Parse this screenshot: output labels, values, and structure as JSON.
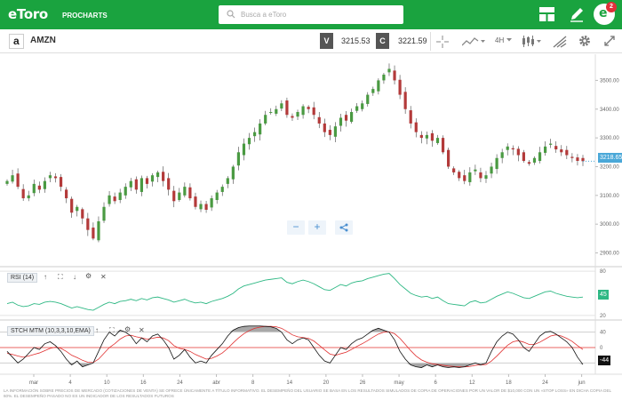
{
  "header": {
    "logo": "eToro",
    "logo_sub": "PROCHARTS",
    "search_placeholder": "Busca a eToro",
    "notification_count": "2",
    "avatar_letter": "e"
  },
  "toolbar": {
    "symbol": "AMZN",
    "sell_label": "V",
    "sell_price": "3215.53",
    "buy_label": "C",
    "buy_price": "3221.59",
    "timeframe": "4H"
  },
  "chart_data": [
    {
      "type": "candlestick",
      "symbol": "AMZN",
      "x_ticks": [
        "mar",
        "4",
        "10",
        "16",
        "24",
        "abr",
        "8",
        "14",
        "20",
        "26",
        "may",
        "6",
        "12",
        "18",
        "24",
        "jun"
      ],
      "y_ticks": [
        2900,
        3000,
        3100,
        3200,
        3300,
        3400,
        3500
      ],
      "ylim": [
        2880,
        3560
      ],
      "last_price": "3218.65",
      "close_series": [
        3150,
        3170,
        3130,
        3090,
        3100,
        3140,
        3120,
        3150,
        3170,
        3160,
        3130,
        3090,
        3040,
        3060,
        3020,
        2980,
        2950,
        3010,
        3060,
        3100,
        3080,
        3110,
        3130,
        3150,
        3120,
        3160,
        3140,
        3170,
        3180,
        3150,
        3120,
        3080,
        3110,
        3130,
        3090,
        3060,
        3070,
        3050,
        3090,
        3110,
        3130,
        3160,
        3200,
        3250,
        3280,
        3300,
        3320,
        3350,
        3380,
        3390,
        3400,
        3420,
        3380,
        3370,
        3390,
        3410,
        3400,
        3380,
        3350,
        3320,
        3310,
        3340,
        3370,
        3360,
        3390,
        3410,
        3420,
        3450,
        3470,
        3500,
        3520,
        3540,
        3500,
        3450,
        3400,
        3350,
        3320,
        3300,
        3310,
        3290,
        3300,
        3250,
        3200,
        3180,
        3160,
        3150,
        3180,
        3190,
        3160,
        3170,
        3200,
        3230,
        3250,
        3270,
        3260,
        3240,
        3220,
        3210,
        3230,
        3250,
        3270,
        3280,
        3260,
        3250,
        3240,
        3230,
        3220,
        3219
      ]
    },
    {
      "type": "line",
      "name": "RSI (14)",
      "y_ticks": [
        20,
        80
      ],
      "ylim": [
        15,
        85
      ],
      "last_value": "45",
      "values": [
        36,
        38,
        34,
        32,
        33,
        36,
        35,
        38,
        39,
        38,
        36,
        33,
        30,
        32,
        30,
        28,
        27,
        31,
        35,
        38,
        36,
        39,
        40,
        42,
        40,
        43,
        41,
        44,
        45,
        43,
        41,
        38,
        40,
        42,
        39,
        37,
        38,
        36,
        39,
        41,
        43,
        46,
        50,
        56,
        60,
        62,
        64,
        66,
        68,
        69,
        70,
        71,
        65,
        63,
        66,
        68,
        66,
        63,
        59,
        55,
        54,
        58,
        62,
        60,
        64,
        66,
        67,
        70,
        72,
        74,
        76,
        77,
        70,
        62,
        56,
        50,
        47,
        45,
        46,
        43,
        45,
        40,
        36,
        35,
        34,
        33,
        38,
        40,
        37,
        38,
        42,
        46,
        49,
        52,
        50,
        47,
        44,
        43,
        46,
        49,
        52,
        53,
        50,
        48,
        46,
        45,
        44,
        45
      ]
    },
    {
      "type": "line",
      "name": "STCH MTM (10,3,3,10,EMA)",
      "y_ticks": [
        40,
        0
      ],
      "ylim": [
        -60,
        60
      ],
      "last_value": "-44",
      "series": [
        {
          "name": "K",
          "values": [
            -10,
            -25,
            -40,
            -30,
            -15,
            0,
            -5,
            10,
            15,
            5,
            -10,
            -30,
            -45,
            -35,
            -50,
            -45,
            -40,
            -10,
            20,
            40,
            30,
            45,
            40,
            30,
            10,
            25,
            15,
            30,
            35,
            20,
            0,
            -30,
            -20,
            -5,
            -25,
            -40,
            -35,
            -40,
            -20,
            -5,
            10,
            30,
            45,
            52,
            55,
            56,
            56,
            56,
            55,
            54,
            50,
            40,
            20,
            10,
            20,
            25,
            20,
            0,
            -20,
            -35,
            -40,
            -20,
            0,
            -5,
            10,
            20,
            25,
            35,
            45,
            50,
            45,
            40,
            20,
            -10,
            -30,
            -45,
            -50,
            -52,
            -45,
            -50,
            -45,
            -50,
            -52,
            -50,
            -52,
            -50,
            -45,
            -40,
            -45,
            -40,
            -10,
            15,
            30,
            40,
            35,
            20,
            0,
            -10,
            10,
            30,
            40,
            42,
            35,
            25,
            15,
            0,
            -25,
            -44
          ]
        },
        {
          "name": "D",
          "values": [
            -15,
            -18,
            -22,
            -25,
            -22,
            -18,
            -14,
            -8,
            -2,
            1,
            -2,
            -10,
            -20,
            -26,
            -33,
            -38,
            -39,
            -30,
            -15,
            0,
            10,
            22,
            30,
            32,
            28,
            25,
            22,
            24,
            27,
            25,
            18,
            5,
            -2,
            -5,
            -10,
            -18,
            -24,
            -30,
            -28,
            -22,
            -14,
            -2,
            12,
            25,
            36,
            44,
            50,
            53,
            55,
            55,
            54,
            50,
            42,
            33,
            28,
            26,
            24,
            17,
            6,
            -6,
            -17,
            -20,
            -16,
            -12,
            -5,
            3,
            10,
            18,
            27,
            35,
            40,
            41,
            36,
            24,
            8,
            -8,
            -22,
            -32,
            -38,
            -42,
            -44,
            -46,
            -48,
            -49,
            -50,
            -50,
            -49,
            -46,
            -45,
            -44,
            -35,
            -22,
            -8,
            6,
            15,
            18,
            14,
            8,
            8,
            14,
            22,
            30,
            33,
            30,
            24,
            16,
            5,
            -5
          ]
        }
      ]
    }
  ],
  "footer": {
    "disclaimer": "LA INFORMACIÓN SOBRE PRECIOS DE MERCADO (COTIZACIONES DE VENTA) SE OFRECE ÚNICAMENTE A TÍTULO INFORMATIVO. EL DESEMPEÑO DEL USUARIO SE BASA EN LOS RESULTADOS SIMULADOS DE COPIA DE OPERACIONES POR UN VALOR DE $10,000 CON UN «STOP LOSS» EN DICHA COPIA DEL 60%. EL DESEMPEÑO PASADO NO ES UN INDICADOR DE LOS RESULTADOS FUTUROS"
  },
  "colors": {
    "brand": "#1aa33f",
    "bull": "#4a9a42",
    "bear": "#b33a3a",
    "rsi": "#2eb884",
    "last_price_tag": "#4aa8d8",
    "k_line": "#111111",
    "d_line": "#e03030"
  }
}
